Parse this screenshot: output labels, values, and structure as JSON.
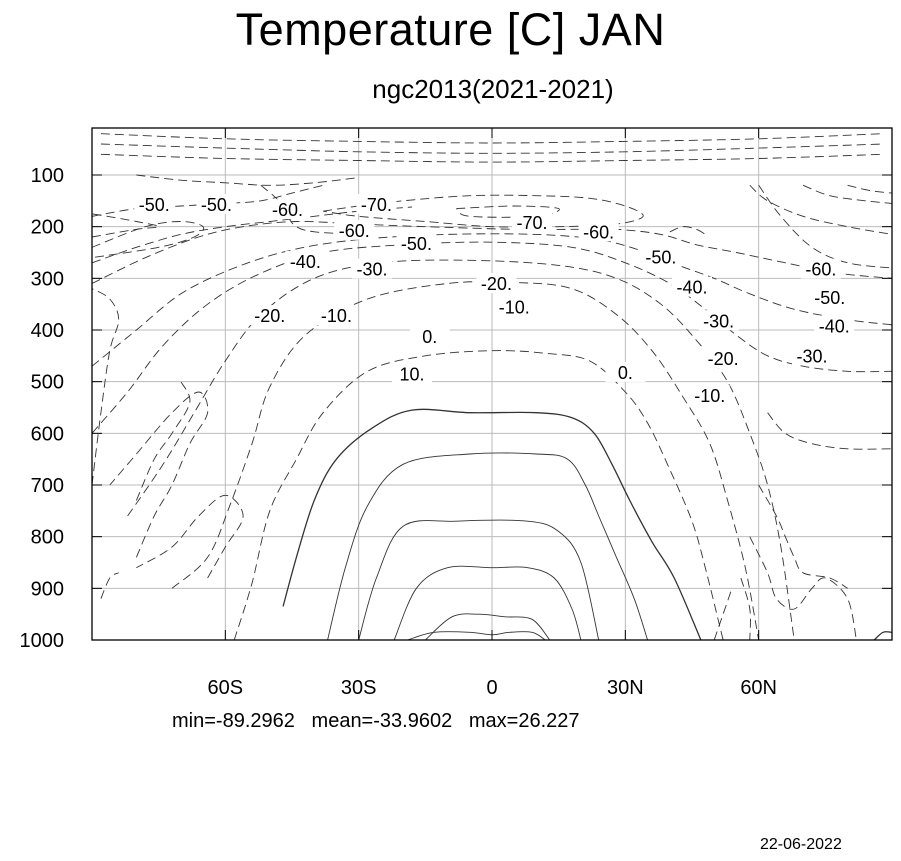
{
  "chart_data": {
    "type": "contour",
    "title": "Temperature [C] JAN",
    "subtitle": "ngc2013(2021-2021)",
    "x_tick_labels": [
      "60S",
      "30S",
      "0",
      "30N",
      "60N"
    ],
    "x_tick_values": [
      -60,
      -30,
      0,
      30,
      60
    ],
    "xlim": [
      -90,
      90
    ],
    "y_tick_labels": [
      "100",
      "200",
      "300",
      "400",
      "500",
      "600",
      "700",
      "800",
      "900",
      "1000"
    ],
    "y_tick_values": [
      100,
      200,
      300,
      400,
      500,
      600,
      700,
      800,
      900,
      1000
    ],
    "ylim": [
      10,
      1000
    ],
    "y_reversed": true,
    "grid": true,
    "contour_interval": 10,
    "negative_contours": "dashed",
    "contour_labels": [
      {
        "text": "-50.",
        "lat": -76,
        "p": 160
      },
      {
        "text": "-50.",
        "lat": -62,
        "p": 160
      },
      {
        "text": "-60.",
        "lat": -46,
        "p": 170
      },
      {
        "text": "-70.",
        "lat": -26,
        "p": 160
      },
      {
        "text": "-70.",
        "lat": 9,
        "p": 195
      },
      {
        "text": "-60.",
        "lat": -31,
        "p": 210
      },
      {
        "text": "-60.",
        "lat": 24,
        "p": 213
      },
      {
        "text": "-50.",
        "lat": -17,
        "p": 235
      },
      {
        "text": "-50.",
        "lat": 38,
        "p": 262
      },
      {
        "text": "-40.",
        "lat": -42,
        "p": 270
      },
      {
        "text": "-30.",
        "lat": -27,
        "p": 285
      },
      {
        "text": "-20.",
        "lat": 1,
        "p": 313
      },
      {
        "text": "-60.",
        "lat": 74,
        "p": 285
      },
      {
        "text": "-40.",
        "lat": 45,
        "p": 320
      },
      {
        "text": "-50.",
        "lat": 76,
        "p": 340
      },
      {
        "text": "-10.",
        "lat": 5,
        "p": 358
      },
      {
        "text": "-20.",
        "lat": -50,
        "p": 375
      },
      {
        "text": "-10.",
        "lat": -35,
        "p": 375
      },
      {
        "text": "-30.",
        "lat": 51,
        "p": 385
      },
      {
        "text": "-40.",
        "lat": 77,
        "p": 395
      },
      {
        "text": "0.",
        "lat": -14,
        "p": 415
      },
      {
        "text": "-30.",
        "lat": 72,
        "p": 453
      },
      {
        "text": "-20.",
        "lat": 52,
        "p": 458
      },
      {
        "text": "0.",
        "lat": 30,
        "p": 485
      },
      {
        "text": "10.",
        "lat": -18,
        "p": 488
      },
      {
        "text": "-10.",
        "lat": 49,
        "p": 530
      }
    ],
    "stats": {
      "min": -89.2962,
      "mean": -33.9602,
      "max": 26.227
    }
  },
  "header": {
    "title": "Temperature [C] JAN",
    "subtitle": "ngc2013(2021-2021)"
  },
  "footer": {
    "stats_text": "min=-89.2962   mean=-33.9602   max=26.227",
    "date": "22-06-2022"
  }
}
